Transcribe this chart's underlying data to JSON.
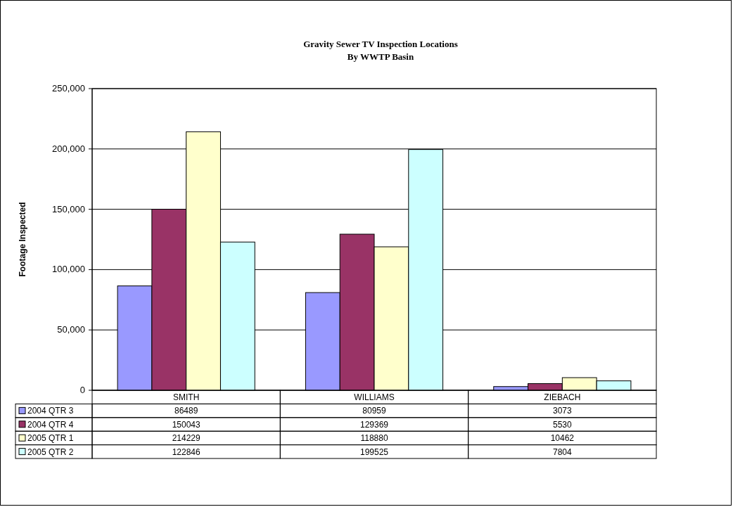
{
  "chart_data": {
    "type": "bar",
    "title": "Gravity Sewer TV Inspection Locations",
    "subtitle": "By WWTP Basin",
    "ylabel": "Footage Inspected",
    "categories": [
      "SMITH",
      "WILLIAMS",
      "ZIEBACH"
    ],
    "series": [
      {
        "name": "2004 QTR 3",
        "color": "#9999ff",
        "values": [
          86489,
          80959,
          3073
        ]
      },
      {
        "name": "2004 QTR 4",
        "color": "#993366",
        "values": [
          150043,
          129369,
          5530
        ]
      },
      {
        "name": "2005 QTR 1",
        "color": "#ffffcc",
        "values": [
          214229,
          118880,
          10462
        ]
      },
      {
        "name": "2005 QTR 2",
        "color": "#ccffff",
        "values": [
          122846,
          199525,
          7804
        ]
      }
    ],
    "ylim": [
      0,
      250000
    ],
    "yticks": [
      {
        "value": 0,
        "label": "0"
      },
      {
        "value": 50000,
        "label": "50,000"
      },
      {
        "value": 100000,
        "label": "100,000"
      },
      {
        "value": 150000,
        "label": "150,000"
      },
      {
        "value": 200000,
        "label": "200,000"
      },
      {
        "value": 250000,
        "label": "250,000"
      }
    ],
    "grid": "y",
    "legend": "bottom",
    "data_labels": true
  }
}
